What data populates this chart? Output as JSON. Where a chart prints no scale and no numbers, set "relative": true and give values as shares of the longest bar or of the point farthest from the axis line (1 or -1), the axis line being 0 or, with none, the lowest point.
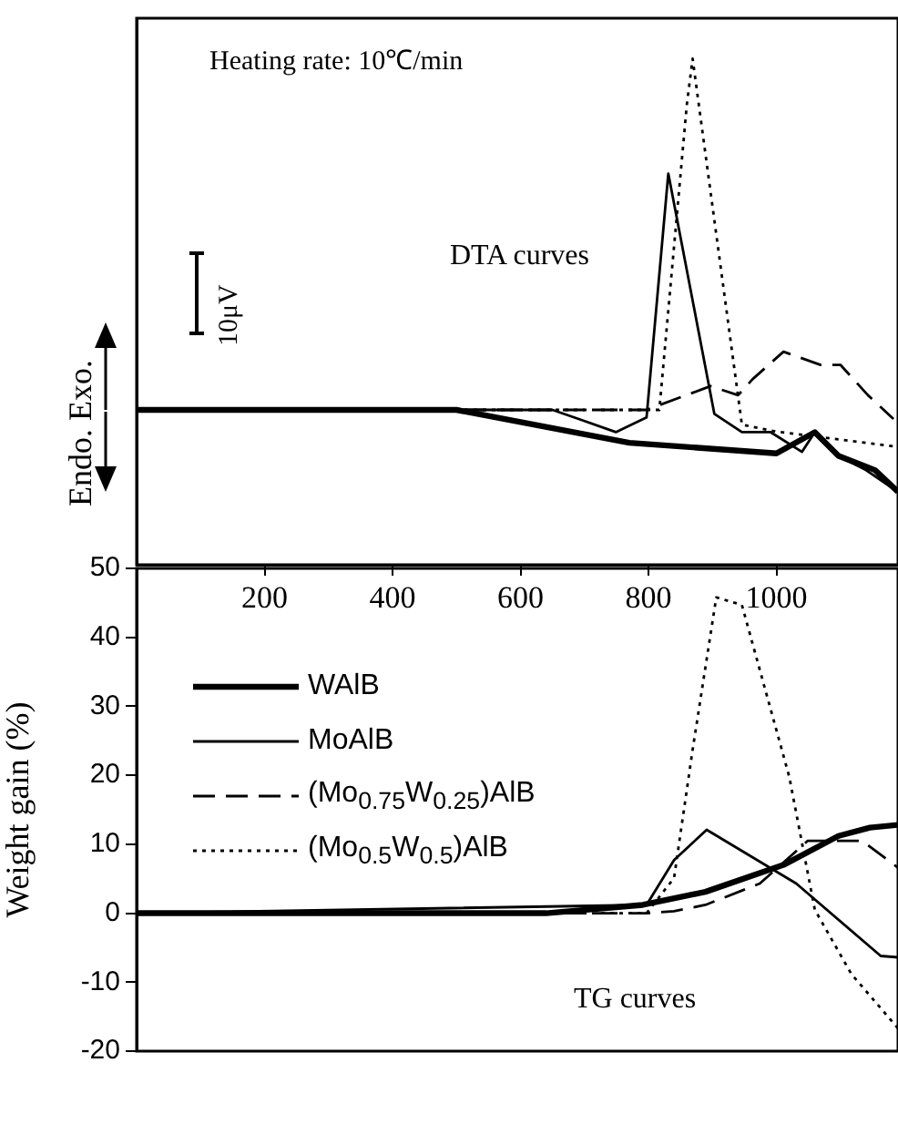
{
  "chart_data": [
    {
      "type": "line",
      "relative": true,
      "ylabel": "Endo. Exo.",
      "annotations": [
        "Heating rate: 10℃/min",
        "DTA curves",
        "10μV"
      ],
      "xlim": [
        0,
        1190
      ],
      "xticks": [
        200,
        400,
        600,
        800,
        1000
      ],
      "tick_labels": "x",
      "legend": false,
      "grid": false,
      "marker": "none",
      "series": [
        {
          "color": "#000000",
          "line_style": "solid",
          "x": [
            0,
            500,
            770,
            1000,
            1060,
            1097,
            1154,
            1190
          ],
          "values": [
            0.306,
            0.306,
            0.241,
            0.22,
            0.262,
            0.215,
            0.187,
            0.144
          ]
        },
        {
          "color": "#000000",
          "line_style": "solid",
          "x": [
            0,
            650,
            691,
            749,
            797,
            831,
            903,
            946,
            991,
            1040,
            1060,
            1097,
            1140,
            1190
          ],
          "values": [
            0.306,
            0.306,
            0.288,
            0.262,
            0.291,
            0.773,
            0.298,
            0.262,
            0.262,
            0.223,
            0.262,
            0.215,
            0.187,
            0.144
          ]
        },
        {
          "color": "#000000",
          "line_style": "dashed",
          "x": [
            0,
            797,
            897,
            940,
            963,
            1011,
            1069,
            1100,
            1143,
            1183
          ],
          "values": [
            0.306,
            0.306,
            0.353,
            0.335,
            0.367,
            0.421,
            0.395,
            0.395,
            0.335,
            0.288
          ]
        },
        {
          "color": "#000000",
          "line_style": "dotted",
          "x": [
            0,
            817,
            860,
            869,
            946,
            1000,
            1190
          ],
          "values": [
            0.306,
            0.306,
            0.91,
            1,
            0.277,
            0.263,
            0.233
          ]
        }
      ]
    },
    {
      "type": "line",
      "ylabel": "Weight gain (%)",
      "annotations": [
        "TG curves"
      ],
      "xlim": [
        0,
        1190
      ],
      "ylim": [
        -20,
        50
      ],
      "yticks": [
        -20,
        -10,
        0,
        10,
        20,
        30,
        40,
        50
      ],
      "tick_labels": "y",
      "legend": "top left",
      "grid": false,
      "marker": "none",
      "series": [
        {
          "name": "WAlB",
          "color": "#000000",
          "line_style": "solid",
          "x": [
            0,
            640,
            791,
            889,
            1011,
            1097,
            1146,
            1190
          ],
          "values": [
            0,
            0,
            1.2,
            3.1,
            7,
            11.2,
            12.4,
            12.8
          ]
        },
        {
          "name": "MoAlB",
          "color": "#000000",
          "line_style": "solid",
          "x": [
            0,
            797,
            840,
            891,
            1031,
            1163,
            1190
          ],
          "values": [
            0,
            1.2,
            7.7,
            12.1,
            4.3,
            -6.2,
            -6.4
          ]
        },
        {
          "name": "(Mo$_{0.75}$W$_{0.25}$)AlB",
          "color": "#000000",
          "line_style": "dashed",
          "x": [
            0,
            797,
            840,
            889,
            974,
            1049,
            1134,
            1190
          ],
          "values": [
            0,
            0,
            0.3,
            1.2,
            4.3,
            10.5,
            10.5,
            6.6
          ]
        },
        {
          "name": "(Mo$_{0.5}$W$_{0.5}$)AlB",
          "color": "#000000",
          "line_style": "dotted",
          "x": [
            0,
            797,
            840,
            869,
            906,
            946,
            1020,
            1060,
            1117,
            1190
          ],
          "values": [
            0,
            0,
            5.1,
            23.7,
            45.8,
            44.7,
            19.8,
            0.5,
            -8.8,
            -16.7
          ]
        }
      ]
    }
  ]
}
